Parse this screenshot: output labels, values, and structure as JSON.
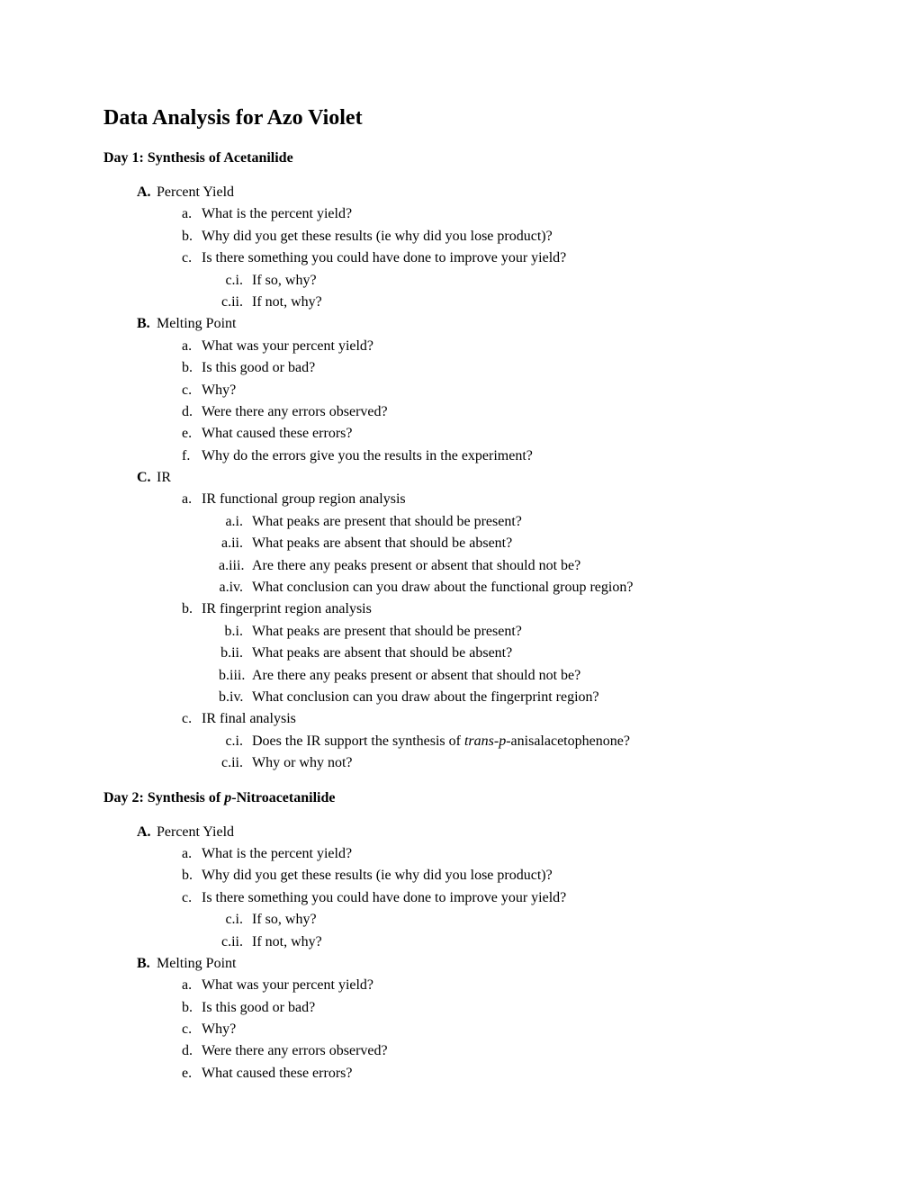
{
  "page_title": "Data Analysis for Azo Violet",
  "day1": {
    "heading": "Day 1: Synthesis of Acetanilide",
    "A": {
      "marker": "A.",
      "label": "Percent Yield",
      "a": {
        "marker": "a.",
        "text": "What is the percent yield?"
      },
      "b": {
        "marker": "b.",
        "text": "Why did you get these results (ie why did you lose product)?"
      },
      "c": {
        "marker": "c.",
        "text": "Is there something you could have done to improve your yield?",
        "i": {
          "marker": "c.i.",
          "text": "If so, why?"
        },
        "ii": {
          "marker": "c.ii.",
          "text": "If not, why?"
        }
      }
    },
    "B": {
      "marker": "B.",
      "label": "Melting Point",
      "a": {
        "marker": "a.",
        "text": "What was your percent yield?"
      },
      "b": {
        "marker": "b.",
        "text": "Is this good or bad?"
      },
      "c": {
        "marker": "c.",
        "text": "Why?"
      },
      "d": {
        "marker": "d.",
        "text": "Were there any errors observed?"
      },
      "e": {
        "marker": "e.",
        "text": "What caused these errors?"
      },
      "f": {
        "marker": "f.",
        "text": "Why do the errors give you the results in the experiment?"
      }
    },
    "C": {
      "marker": "C.",
      "label": "IR",
      "a": {
        "marker": "a.",
        "text": "IR functional group region analysis",
        "i": {
          "marker": "a.i.",
          "text": "What peaks are present that should be present?"
        },
        "ii": {
          "marker": "a.ii.",
          "text": "What peaks are absent that should be absent?"
        },
        "iii": {
          "marker": "a.iii.",
          "text": "Are there any peaks present or absent that should not be?"
        },
        "iv": {
          "marker": "a.iv.",
          "text": "What conclusion can you draw about the functional group region?"
        }
      },
      "b": {
        "marker": "b.",
        "text": "IR fingerprint region analysis",
        "i": {
          "marker": "b.i.",
          "text": "What peaks are present that should be present?"
        },
        "ii": {
          "marker": "b.ii.",
          "text": "What peaks are absent that should be absent?"
        },
        "iii": {
          "marker": "b.iii.",
          "text": "Are there any peaks present or absent that should not be?"
        },
        "iv": {
          "marker": "b.iv.",
          "text": "What conclusion can you draw about the fingerprint region?"
        }
      },
      "c": {
        "marker": "c.",
        "text": "IR final analysis",
        "i": {
          "marker": "c.i.",
          "text_prefix": "Does the IR support the synthesis of ",
          "italic": "trans-p-",
          "text_suffix": "anisalacetophenone?"
        },
        "ii": {
          "marker": "c.ii.",
          "text": "Why or why not?"
        }
      }
    }
  },
  "day2": {
    "heading_prefix": "Day 2: Synthesis of ",
    "heading_italic": "p",
    "heading_suffix": "-Nitroacetanilide",
    "A": {
      "marker": "A.",
      "label": "Percent Yield",
      "a": {
        "marker": "a.",
        "text": "What is the percent yield?"
      },
      "b": {
        "marker": "b.",
        "text": "Why did you get these results (ie why did you lose product)?"
      },
      "c": {
        "marker": "c.",
        "text": "Is there something you could have done to improve your yield?",
        "i": {
          "marker": "c.i.",
          "text": "If so, why?"
        },
        "ii": {
          "marker": "c.ii.",
          "text": "If not, why?"
        }
      }
    },
    "B": {
      "marker": "B.",
      "label": "Melting Point",
      "a": {
        "marker": "a.",
        "text": "What was your percent yield?"
      },
      "b": {
        "marker": "b.",
        "text": "Is this good or bad?"
      },
      "c": {
        "marker": "c.",
        "text": "Why?"
      },
      "d": {
        "marker": "d.",
        "text": "Were there any errors observed?"
      },
      "e": {
        "marker": "e.",
        "text": "What caused these errors?"
      }
    }
  }
}
